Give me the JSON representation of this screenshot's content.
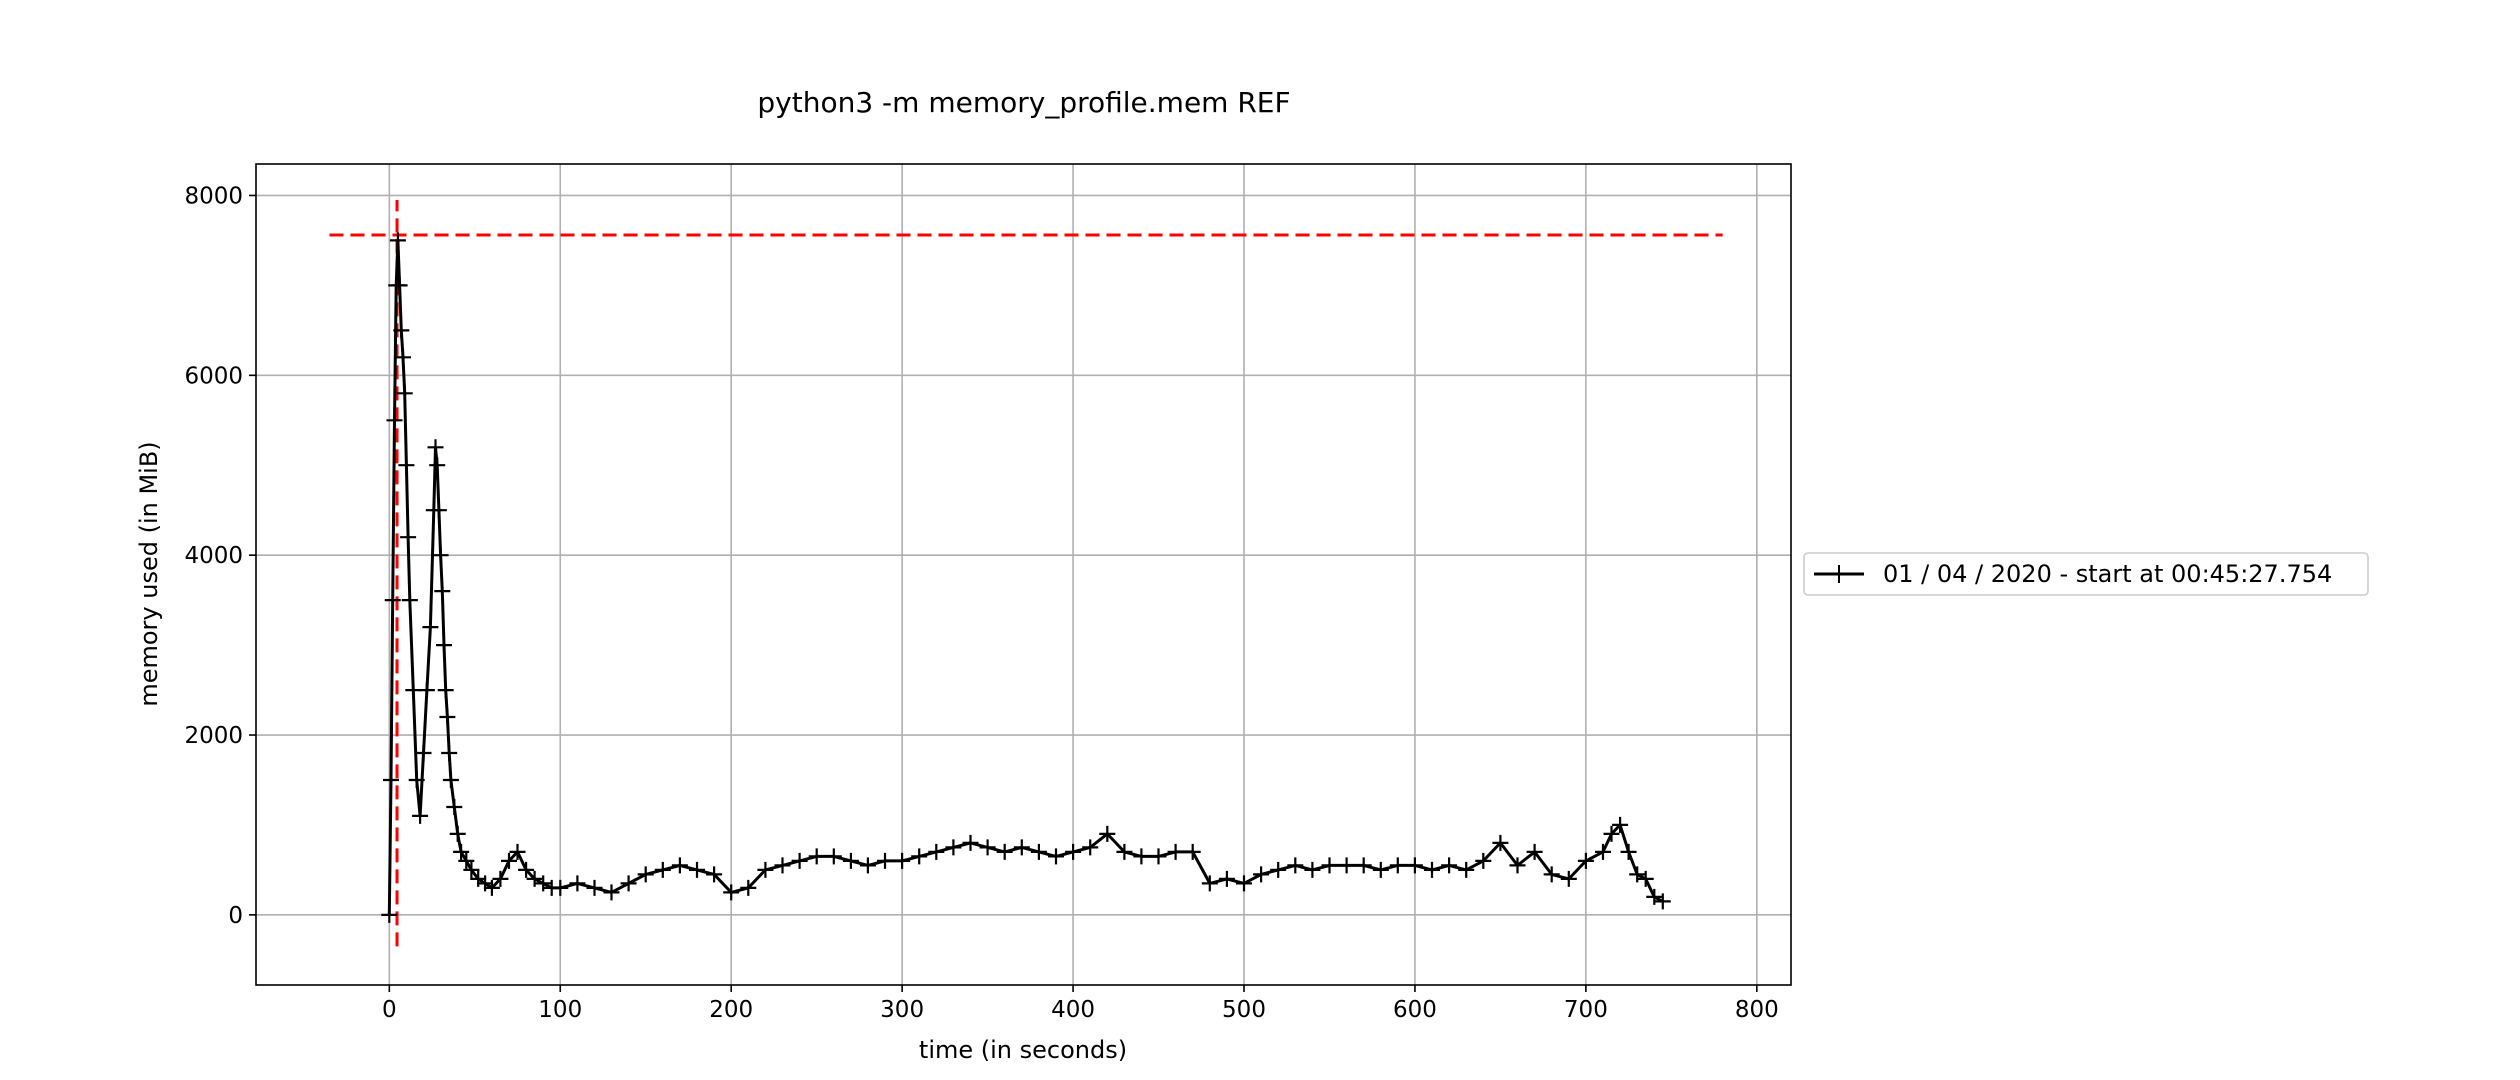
{
  "chart_data": {
    "type": "line",
    "title": "python3 -m memory_profile.mem REF",
    "xlabel": "time (in seconds)",
    "ylabel": "memory used (in MiB)",
    "xlim": [
      -78,
      820
    ],
    "ylim": [
      -780,
      8350
    ],
    "x_ticks": [
      0,
      100,
      200,
      300,
      400,
      500,
      600,
      700,
      800
    ],
    "y_ticks": [
      0,
      2000,
      4000,
      6000,
      8000
    ],
    "grid": true,
    "legend_position": "outside-right",
    "marker": "+",
    "colors": {
      "series": "#000000",
      "reference_lines": "#ff0000",
      "grid": "#b0b0b0"
    },
    "series": [
      {
        "name": "01 / 04 / 2020 - start at 00:45:27.754",
        "x": [
          0,
          1,
          2,
          3,
          4,
          5,
          6,
          7,
          8,
          9,
          10,
          11,
          12,
          14,
          16,
          18,
          20,
          22,
          24,
          26,
          27,
          28,
          29,
          30,
          31,
          32,
          33,
          34,
          35,
          36,
          38,
          40,
          42,
          45,
          48,
          52,
          56,
          60,
          65,
          70,
          75,
          80,
          85,
          90,
          95,
          100,
          110,
          120,
          130,
          140,
          150,
          160,
          170,
          180,
          190,
          200,
          210,
          220,
          230,
          240,
          250,
          260,
          270,
          280,
          290,
          300,
          310,
          320,
          330,
          340,
          350,
          360,
          370,
          380,
          390,
          400,
          410,
          420,
          430,
          440,
          450,
          460,
          470,
          480,
          490,
          500,
          510,
          520,
          530,
          540,
          550,
          560,
          570,
          580,
          590,
          600,
          610,
          620,
          630,
          640,
          650,
          660,
          670,
          680,
          690,
          700,
          710,
          715,
          720,
          725,
          730,
          735,
          740,
          745
        ],
        "y": [
          0,
          1500,
          3500,
          5500,
          7000,
          7500,
          7000,
          6500,
          6200,
          5800,
          5000,
          4200,
          3500,
          2500,
          1500,
          1100,
          1800,
          2500,
          3200,
          4500,
          5200,
          5000,
          4500,
          4000,
          3600,
          3000,
          2500,
          2200,
          1800,
          1500,
          1200,
          900,
          700,
          600,
          500,
          400,
          350,
          300,
          400,
          600,
          700,
          500,
          400,
          350,
          300,
          300,
          350,
          300,
          250,
          350,
          450,
          500,
          550,
          500,
          450,
          250,
          300,
          500,
          550,
          600,
          650,
          650,
          600,
          550,
          600,
          600,
          650,
          700,
          750,
          800,
          750,
          700,
          750,
          700,
          650,
          700,
          750,
          900,
          700,
          650,
          650,
          700,
          700,
          350,
          400,
          350,
          450,
          500,
          550,
          500,
          550,
          550,
          550,
          500,
          550,
          550,
          500,
          550,
          500,
          600,
          800,
          550,
          700,
          450,
          400,
          600,
          700,
          900,
          1000,
          700,
          450,
          400,
          200,
          150
        ]
      }
    ],
    "reference_lines": [
      {
        "orientation": "horizontal",
        "value": 7560,
        "from": -35,
        "to": 780,
        "style": "dashed"
      },
      {
        "orientation": "vertical",
        "value": 4.5,
        "from": -350,
        "to": 7950,
        "style": "dashed"
      }
    ]
  }
}
